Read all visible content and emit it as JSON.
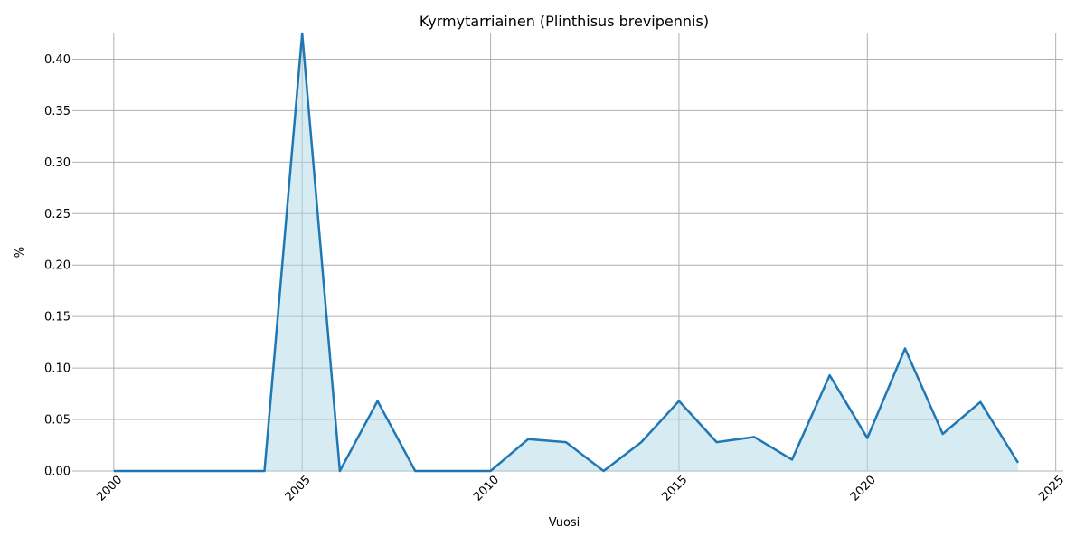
{
  "chart_data": {
    "type": "area",
    "title": "Kyrmytarriainen (Plinthisus brevipennis)",
    "xlabel": "Vuosi",
    "ylabel": "%",
    "xlim": [
      1998.9,
      2025.2
    ],
    "ylim": [
      0,
      0.425
    ],
    "xticks": [
      2000,
      2005,
      2010,
      2015,
      2020,
      2025
    ],
    "xtick_labels": [
      "2000",
      "2005",
      "2010",
      "2015",
      "2020",
      "2025"
    ],
    "yticks": [
      0.0,
      0.05,
      0.1,
      0.15,
      0.2,
      0.25,
      0.3,
      0.35,
      0.4
    ],
    "ytick_labels": [
      "0.00",
      "0.05",
      "0.10",
      "0.15",
      "0.20",
      "0.25",
      "0.30",
      "0.35",
      "0.40"
    ],
    "grid": true,
    "legend": "none",
    "colors": {
      "line": "#1f77b4",
      "fill": "#add8e6",
      "grid": "#b0b0b0"
    },
    "series": [
      {
        "x": [
          2000,
          2001,
          2002,
          2003,
          2004,
          2005,
          2006,
          2007,
          2008,
          2009,
          2010,
          2011,
          2012,
          2013,
          2014,
          2015,
          2016,
          2017,
          2018,
          2019,
          2020,
          2021,
          2022,
          2023,
          2024
        ],
        "values": [
          0,
          0,
          0,
          0,
          0,
          0.425,
          0,
          0.068,
          0,
          0,
          0,
          0.031,
          0.028,
          0,
          0.028,
          0.068,
          0.028,
          0.033,
          0.011,
          0.093,
          0.032,
          0.119,
          0.036,
          0.067,
          0.008
        ]
      }
    ]
  }
}
